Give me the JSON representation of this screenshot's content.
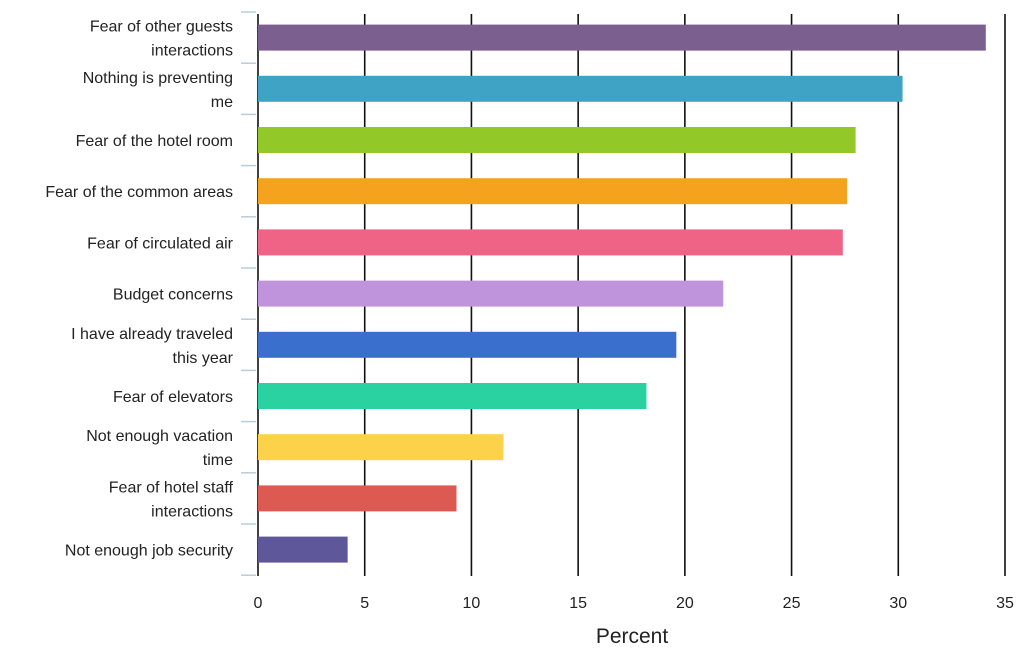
{
  "chart_data": {
    "type": "bar",
    "orientation": "horizontal",
    "categories": [
      [
        "Fear of other guests",
        "interactions"
      ],
      [
        "Nothing is preventing",
        "me"
      ],
      [
        "Fear of the hotel room"
      ],
      [
        "Fear of the common areas"
      ],
      [
        "Fear of circulated air"
      ],
      [
        "Budget concerns"
      ],
      [
        "I have already traveled",
        "this year"
      ],
      [
        "Fear of elevators"
      ],
      [
        "Not enough vacation",
        "time"
      ],
      [
        "Fear of hotel staff",
        "interactions"
      ],
      [
        "Not enough job security"
      ]
    ],
    "values": [
      34.1,
      30.2,
      28.0,
      27.6,
      27.4,
      21.8,
      19.6,
      18.2,
      11.5,
      9.3,
      4.2
    ],
    "colors": [
      "#7b5f8e",
      "#3ea3c4",
      "#93c829",
      "#f5a21e",
      "#ef6486",
      "#c093dd",
      "#3b6fcd",
      "#2ad1a1",
      "#fcd24a",
      "#dd5a52",
      "#5e589b"
    ],
    "xlabel": "Percent",
    "xlim": [
      0,
      35
    ],
    "xticks": [
      0,
      5,
      10,
      15,
      20,
      25,
      30,
      35
    ],
    "grid": "vertical",
    "legend": "none"
  }
}
